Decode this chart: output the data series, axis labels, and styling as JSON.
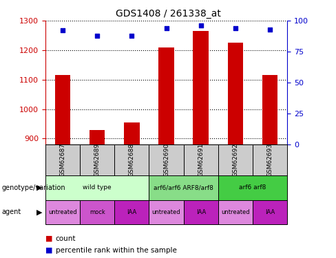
{
  "title": "GDS1408 / 261338_at",
  "samples": [
    "GSM62687",
    "GSM62689",
    "GSM62688",
    "GSM62690",
    "GSM62691",
    "GSM62692",
    "GSM62693"
  ],
  "bar_values": [
    1115,
    928,
    955,
    1210,
    1265,
    1225,
    1115
  ],
  "percentile_values": [
    92,
    88,
    88,
    94,
    96,
    94,
    93
  ],
  "ylim_left": [
    880,
    1300
  ],
  "ylim_right": [
    0,
    100
  ],
  "yticks_left": [
    900,
    1000,
    1100,
    1200,
    1300
  ],
  "yticks_right": [
    0,
    25,
    50,
    75,
    100
  ],
  "bar_color": "#cc0000",
  "dot_color": "#0000cc",
  "genotype_groups": [
    {
      "label": "wild type",
      "start": 0,
      "end": 3,
      "color": "#ccffcc"
    },
    {
      "label": "arf6/arf6 ARF8/arf8",
      "start": 3,
      "end": 5,
      "color": "#88dd88"
    },
    {
      "label": "arf6 arf8",
      "start": 5,
      "end": 7,
      "color": "#44cc44"
    }
  ],
  "agent_labels": [
    "untreated",
    "mock",
    "IAA",
    "untreated",
    "IAA",
    "untreated",
    "IAA"
  ],
  "agent_colors": [
    "#dd88dd",
    "#cc55cc",
    "#bb22bb",
    "#dd88dd",
    "#bb22bb",
    "#dd88dd",
    "#bb22bb"
  ],
  "sample_box_color": "#cccccc",
  "left_axis_color": "#cc0000",
  "right_axis_color": "#0000cc"
}
